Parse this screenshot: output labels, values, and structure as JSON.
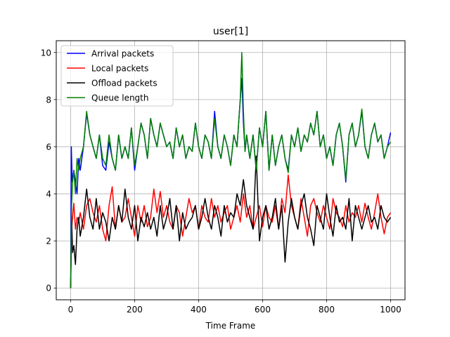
{
  "chart_data": {
    "type": "line",
    "title": "user[1]",
    "xlabel": "Time Frame",
    "ylabel": "",
    "xlim": [
      -45,
      1045
    ],
    "ylim": [
      -0.5,
      10.5
    ],
    "xticks": [
      0,
      200,
      400,
      600,
      800,
      1000
    ],
    "yticks": [
      0,
      2,
      4,
      6,
      8,
      10
    ],
    "grid": true,
    "legend_position": "top-left",
    "series": [
      {
        "name": "Arrival packets",
        "color": "#0000ff",
        "x": [
          0,
          2,
          5,
          10,
          15,
          20,
          25,
          30,
          40,
          50,
          60,
          70,
          80,
          90,
          100,
          110,
          120,
          130,
          140,
          150,
          160,
          170,
          180,
          190,
          200,
          210,
          220,
          230,
          240,
          250,
          260,
          270,
          280,
          290,
          300,
          310,
          320,
          330,
          340,
          350,
          360,
          370,
          380,
          390,
          400,
          410,
          420,
          430,
          440,
          450,
          460,
          470,
          480,
          490,
          500,
          510,
          520,
          530,
          535,
          540,
          545,
          550,
          560,
          570,
          580,
          590,
          600,
          610,
          620,
          630,
          640,
          650,
          660,
          670,
          680,
          690,
          700,
          710,
          720,
          730,
          740,
          750,
          760,
          770,
          780,
          790,
          800,
          810,
          820,
          830,
          840,
          850,
          860,
          870,
          880,
          890,
          900,
          910,
          920,
          930,
          940,
          950,
          960,
          970,
          980,
          990,
          1000
        ],
        "values": [
          0,
          6.0,
          4.5,
          5.0,
          4.5,
          4.0,
          5.5,
          5.0,
          6.0,
          7.4,
          6.5,
          6.0,
          5.5,
          6.5,
          5.2,
          5.0,
          6.2,
          5.5,
          5.0,
          6.5,
          5.5,
          6.0,
          5.5,
          6.8,
          5.0,
          6.0,
          7.0,
          6.5,
          5.5,
          7.2,
          6.5,
          6.0,
          7.0,
          6.5,
          6.0,
          6.2,
          5.5,
          6.8,
          6.0,
          6.5,
          5.5,
          6.0,
          5.8,
          7.0,
          6.0,
          5.5,
          6.5,
          6.2,
          5.5,
          7.5,
          6.0,
          5.5,
          6.5,
          6.0,
          5.2,
          6.5,
          6.0,
          8.0,
          8.9,
          7.0,
          5.8,
          6.5,
          5.5,
          6.5,
          5.0,
          6.8,
          6.0,
          7.5,
          5.0,
          6.5,
          5.2,
          6.0,
          6.5,
          5.5,
          5.0,
          6.5,
          6.0,
          6.8,
          5.8,
          6.5,
          6.2,
          7.0,
          6.5,
          7.5,
          6.0,
          6.5,
          5.5,
          6.0,
          5.2,
          6.5,
          7.0,
          6.0,
          4.5,
          6.5,
          7.0,
          6.0,
          6.5,
          7.5,
          6.0,
          5.5,
          6.5,
          7.0,
          6.2,
          6.5,
          5.5,
          6.0,
          6.6
        ]
      },
      {
        "name": "Local packets",
        "color": "#ff0000",
        "x": [
          0,
          3,
          6,
          10,
          15,
          20,
          25,
          30,
          40,
          50,
          60,
          70,
          80,
          90,
          100,
          110,
          120,
          130,
          140,
          150,
          160,
          170,
          180,
          190,
          200,
          210,
          220,
          230,
          240,
          250,
          260,
          270,
          280,
          290,
          300,
          310,
          320,
          330,
          340,
          350,
          360,
          370,
          380,
          390,
          400,
          410,
          420,
          430,
          440,
          450,
          460,
          470,
          480,
          490,
          500,
          510,
          520,
          530,
          540,
          550,
          560,
          570,
          580,
          590,
          600,
          610,
          620,
          630,
          640,
          650,
          660,
          670,
          680,
          690,
          700,
          710,
          720,
          730,
          740,
          750,
          760,
          770,
          780,
          790,
          800,
          810,
          820,
          830,
          840,
          850,
          860,
          870,
          880,
          890,
          900,
          910,
          920,
          930,
          940,
          950,
          960,
          970,
          980,
          990,
          1000
        ],
        "values": [
          0,
          2.5,
          3.0,
          3.6,
          2.5,
          3.0,
          2.8,
          3.2,
          2.5,
          3.5,
          3.8,
          3.2,
          2.8,
          3.5,
          2.5,
          2.0,
          3.5,
          4.3,
          2.5,
          3.5,
          2.8,
          3.0,
          3.8,
          3.0,
          2.2,
          3.5,
          2.8,
          3.5,
          2.6,
          3.0,
          4.2,
          3.2,
          4.1,
          3.0,
          3.5,
          2.8,
          2.5,
          3.5,
          3.2,
          2.2,
          3.0,
          3.8,
          3.2,
          3.5,
          2.5,
          3.5,
          3.0,
          2.8,
          3.8,
          3.0,
          3.5,
          2.8,
          3.2,
          3.5,
          2.5,
          3.0,
          3.5,
          2.8,
          4.0,
          3.0,
          3.5,
          2.5,
          3.0,
          3.5,
          2.6,
          3.5,
          3.0,
          2.8,
          3.5,
          2.5,
          3.8,
          3.2,
          4.8,
          3.5,
          3.0,
          2.5,
          3.8,
          3.0,
          2.2,
          3.5,
          3.8,
          3.2,
          2.8,
          3.5,
          3.0,
          2.5,
          3.8,
          3.2,
          3.0,
          2.6,
          3.5,
          2.8,
          3.2,
          3.0,
          3.5,
          2.8,
          3.6,
          3.0,
          2.5,
          3.2,
          4.0,
          3.0,
          2.3,
          3.0,
          3.2
        ]
      },
      {
        "name": "Offload packets",
        "color": "#000000",
        "x": [
          0,
          3,
          6,
          10,
          15,
          20,
          25,
          30,
          40,
          50,
          60,
          70,
          80,
          90,
          100,
          110,
          120,
          130,
          140,
          150,
          160,
          170,
          180,
          190,
          200,
          210,
          220,
          230,
          240,
          250,
          260,
          270,
          280,
          290,
          300,
          310,
          320,
          330,
          340,
          350,
          360,
          370,
          380,
          390,
          400,
          410,
          420,
          430,
          440,
          450,
          460,
          470,
          480,
          490,
          500,
          510,
          520,
          530,
          540,
          550,
          560,
          570,
          580,
          590,
          600,
          610,
          620,
          630,
          640,
          650,
          660,
          670,
          680,
          690,
          700,
          710,
          720,
          730,
          740,
          750,
          760,
          770,
          780,
          790,
          800,
          810,
          820,
          830,
          840,
          850,
          860,
          870,
          880,
          890,
          900,
          910,
          920,
          930,
          940,
          950,
          960,
          970,
          980,
          990,
          1000
        ],
        "values": [
          0,
          3.0,
          1.5,
          1.8,
          1.0,
          2.5,
          3.0,
          2.2,
          3.0,
          4.2,
          3.0,
          2.5,
          3.8,
          2.5,
          3.2,
          2.8,
          2.0,
          3.0,
          2.5,
          3.5,
          2.8,
          4.2,
          3.0,
          2.5,
          3.5,
          2.0,
          3.0,
          2.6,
          3.2,
          2.5,
          3.0,
          2.2,
          3.5,
          2.5,
          3.0,
          3.8,
          2.5,
          3.5,
          2.0,
          3.2,
          2.5,
          2.8,
          3.0,
          3.5,
          2.5,
          3.0,
          3.8,
          3.0,
          2.5,
          3.5,
          3.0,
          2.2,
          3.5,
          2.8,
          3.2,
          3.0,
          4.0,
          3.5,
          4.6,
          3.5,
          3.0,
          2.5,
          5.6,
          2.0,
          3.0,
          3.5,
          2.5,
          3.0,
          3.8,
          2.5,
          3.5,
          1.1,
          2.8,
          3.8,
          3.0,
          2.5,
          3.5,
          4.0,
          3.0,
          2.5,
          1.8,
          3.5,
          3.0,
          2.5,
          4.0,
          3.0,
          2.2,
          3.5,
          2.8,
          3.0,
          2.5,
          3.8,
          2.0,
          3.5,
          3.0,
          2.5,
          3.0,
          3.5,
          2.8,
          3.0,
          2.5,
          3.5,
          3.0,
          2.8,
          3.0
        ]
      },
      {
        "name": "Queue length",
        "color": "#008000",
        "x": [
          0,
          3,
          6,
          10,
          15,
          20,
          25,
          30,
          40,
          50,
          60,
          70,
          80,
          90,
          100,
          110,
          120,
          130,
          140,
          150,
          160,
          170,
          180,
          190,
          200,
          210,
          220,
          230,
          240,
          250,
          260,
          270,
          280,
          290,
          300,
          310,
          320,
          330,
          340,
          350,
          360,
          370,
          380,
          390,
          400,
          410,
          420,
          430,
          440,
          450,
          460,
          470,
          480,
          490,
          500,
          510,
          520,
          530,
          535,
          540,
          545,
          550,
          560,
          570,
          580,
          590,
          600,
          610,
          620,
          630,
          640,
          650,
          660,
          670,
          680,
          690,
          700,
          710,
          720,
          730,
          740,
          750,
          760,
          770,
          780,
          790,
          800,
          810,
          820,
          830,
          840,
          850,
          860,
          870,
          880,
          890,
          900,
          910,
          920,
          930,
          940,
          950,
          960,
          970,
          980,
          990,
          1000
        ],
        "values": [
          0,
          3.5,
          4.5,
          5.0,
          4.0,
          5.5,
          5.0,
          5.5,
          6.0,
          7.5,
          6.5,
          6.0,
          5.5,
          6.5,
          5.5,
          5.2,
          6.5,
          5.5,
          5.0,
          6.5,
          5.5,
          6.0,
          5.5,
          6.8,
          5.2,
          6.0,
          7.0,
          6.5,
          5.5,
          7.2,
          6.5,
          6.0,
          7.0,
          6.5,
          6.0,
          6.2,
          5.5,
          6.8,
          6.0,
          6.5,
          5.5,
          6.0,
          5.8,
          7.0,
          6.0,
          5.5,
          6.5,
          6.2,
          5.5,
          7.2,
          6.0,
          5.5,
          6.5,
          6.0,
          5.2,
          6.5,
          6.0,
          8.0,
          10.0,
          7.5,
          5.8,
          6.5,
          5.5,
          6.5,
          5.0,
          6.8,
          6.0,
          7.5,
          5.0,
          6.5,
          5.2,
          6.0,
          6.5,
          5.5,
          4.9,
          6.5,
          6.0,
          6.8,
          5.8,
          6.5,
          6.2,
          7.0,
          6.5,
          7.5,
          6.0,
          6.5,
          5.5,
          6.0,
          5.2,
          6.5,
          7.0,
          6.0,
          4.6,
          6.5,
          7.0,
          6.0,
          6.5,
          7.6,
          6.0,
          5.5,
          6.5,
          7.0,
          6.2,
          6.5,
          5.5,
          6.0,
          6.2
        ]
      }
    ]
  }
}
